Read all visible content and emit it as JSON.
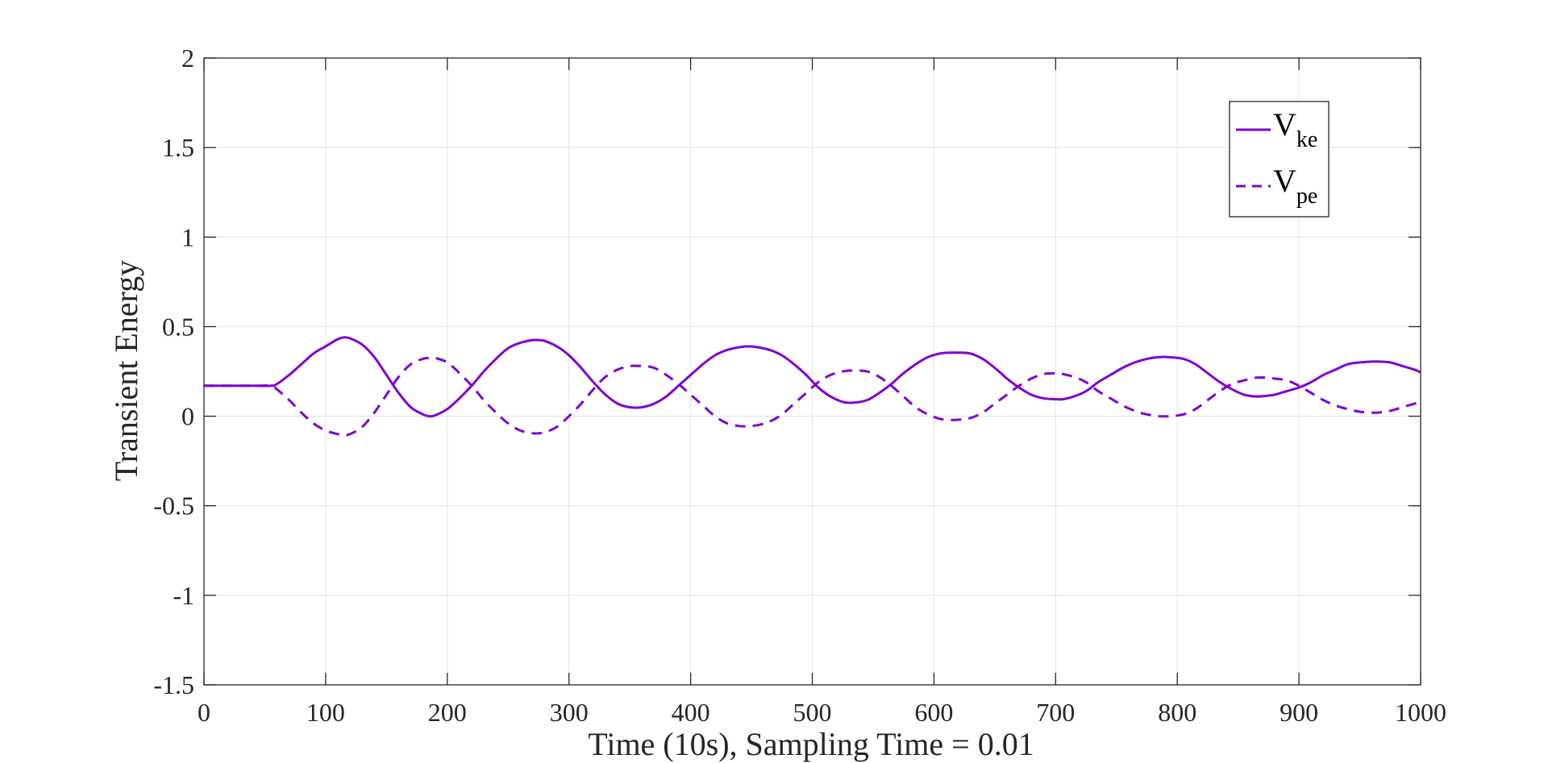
{
  "chart_data": {
    "type": "line",
    "title": "",
    "xlabel": "Time (10s), Sampling Time = 0.01",
    "ylabel": "Transient Energy",
    "xlim": [
      0,
      1000
    ],
    "ylim": [
      -1.5,
      2
    ],
    "xticks": [
      "0",
      "100",
      "200",
      "300",
      "400",
      "500",
      "600",
      "700",
      "800",
      "900",
      "1000"
    ],
    "yticks": [
      "-1.5",
      "-1",
      "-0.5",
      "0",
      "0.5",
      "1",
      "1.5",
      "2"
    ],
    "grid": true,
    "legend_position": "top-right",
    "color": "#7F00D4",
    "series": [
      {
        "name_main": "V",
        "name_sub": "ke",
        "style": "solid",
        "x": [
          0,
          20,
          40,
          55,
          60,
          70,
          80,
          90,
          100,
          110,
          115,
          120,
          130,
          140,
          150,
          160,
          170,
          180,
          185,
          190,
          200,
          210,
          220,
          230,
          240,
          250,
          260,
          270,
          275,
          280,
          290,
          300,
          310,
          320,
          330,
          340,
          350,
          360,
          370,
          380,
          390,
          400,
          410,
          420,
          430,
          440,
          447,
          455,
          465,
          475,
          485,
          495,
          505,
          515,
          525,
          533,
          545,
          555,
          565,
          575,
          585,
          595,
          605,
          613,
          620,
          630,
          640,
          650,
          660,
          670,
          680,
          690,
          700,
          706,
          715,
          725,
          735,
          745,
          755,
          765,
          775,
          785,
          793,
          805,
          815,
          825,
          835,
          845,
          855,
          865,
          875,
          880,
          890,
          900,
          910,
          920,
          930,
          940,
          950,
          960,
          965,
          975,
          985,
          995,
          1000
        ],
        "y": [
          0.17,
          0.17,
          0.17,
          0.17,
          0.18,
          0.23,
          0.29,
          0.35,
          0.39,
          0.43,
          0.44,
          0.435,
          0.4,
          0.33,
          0.23,
          0.13,
          0.05,
          0.01,
          0.0,
          0.005,
          0.04,
          0.1,
          0.17,
          0.25,
          0.32,
          0.38,
          0.41,
          0.425,
          0.425,
          0.42,
          0.39,
          0.34,
          0.27,
          0.19,
          0.12,
          0.07,
          0.05,
          0.05,
          0.07,
          0.11,
          0.17,
          0.23,
          0.29,
          0.34,
          0.37,
          0.385,
          0.39,
          0.385,
          0.37,
          0.34,
          0.29,
          0.23,
          0.16,
          0.11,
          0.08,
          0.075,
          0.09,
          0.13,
          0.18,
          0.24,
          0.29,
          0.33,
          0.35,
          0.355,
          0.355,
          0.35,
          0.32,
          0.27,
          0.21,
          0.16,
          0.12,
          0.1,
          0.095,
          0.095,
          0.11,
          0.14,
          0.19,
          0.23,
          0.27,
          0.3,
          0.32,
          0.33,
          0.33,
          0.32,
          0.29,
          0.24,
          0.19,
          0.15,
          0.12,
          0.11,
          0.115,
          0.12,
          0.14,
          0.16,
          0.19,
          0.23,
          0.26,
          0.29,
          0.3,
          0.305,
          0.305,
          0.3,
          0.28,
          0.26,
          0.245
        ]
      },
      {
        "name_main": "V",
        "name_sub": "pe",
        "style": "dashed",
        "x": [
          0,
          20,
          40,
          55,
          60,
          70,
          80,
          90,
          100,
          110,
          115,
          120,
          130,
          140,
          150,
          160,
          170,
          180,
          185,
          190,
          200,
          210,
          220,
          230,
          240,
          250,
          260,
          270,
          275,
          280,
          290,
          300,
          310,
          320,
          330,
          340,
          350,
          360,
          370,
          380,
          390,
          400,
          410,
          420,
          430,
          440,
          447,
          455,
          465,
          475,
          485,
          495,
          505,
          515,
          525,
          533,
          545,
          555,
          565,
          575,
          585,
          595,
          605,
          613,
          620,
          630,
          640,
          650,
          660,
          670,
          680,
          690,
          700,
          706,
          715,
          725,
          735,
          745,
          755,
          765,
          775,
          785,
          793,
          805,
          815,
          825,
          835,
          845,
          855,
          865,
          875,
          880,
          890,
          900,
          910,
          920,
          930,
          940,
          950,
          960,
          965,
          975,
          985,
          995,
          1000
        ],
        "y": [
          0.17,
          0.17,
          0.17,
          0.17,
          0.15,
          0.09,
          0.02,
          -0.04,
          -0.08,
          -0.1,
          -0.105,
          -0.1,
          -0.06,
          0.02,
          0.12,
          0.22,
          0.29,
          0.32,
          0.325,
          0.325,
          0.3,
          0.24,
          0.17,
          0.09,
          0.02,
          -0.04,
          -0.08,
          -0.095,
          -0.095,
          -0.09,
          -0.06,
          0.0,
          0.07,
          0.15,
          0.22,
          0.26,
          0.28,
          0.28,
          0.27,
          0.23,
          0.18,
          0.12,
          0.06,
          0.0,
          -0.04,
          -0.055,
          -0.055,
          -0.05,
          -0.03,
          0.01,
          0.07,
          0.13,
          0.19,
          0.23,
          0.25,
          0.255,
          0.25,
          0.22,
          0.17,
          0.11,
          0.05,
          0.01,
          -0.015,
          -0.02,
          -0.02,
          -0.01,
          0.02,
          0.07,
          0.12,
          0.17,
          0.21,
          0.235,
          0.24,
          0.235,
          0.22,
          0.19,
          0.14,
          0.1,
          0.06,
          0.03,
          0.01,
          0.0,
          0.0,
          0.01,
          0.04,
          0.09,
          0.14,
          0.18,
          0.2,
          0.215,
          0.215,
          0.21,
          0.2,
          0.17,
          0.13,
          0.09,
          0.06,
          0.04,
          0.025,
          0.02,
          0.02,
          0.03,
          0.05,
          0.07,
          0.08
        ]
      }
    ]
  }
}
